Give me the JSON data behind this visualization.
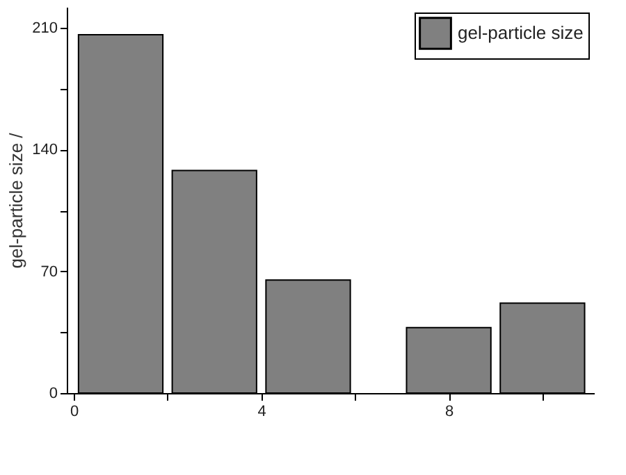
{
  "chart_data": {
    "type": "bar",
    "ylabel": "gel-particle size /",
    "x": [
      1,
      3,
      5,
      8,
      10
    ],
    "series": [
      {
        "name": "gel-particle size",
        "color": "#808080",
        "values": [
          206,
          128,
          65,
          37.6,
          51.7
        ]
      }
    ],
    "xlim": [
      -0.15,
      11.1
    ],
    "xticks": [
      0,
      {
        "value": 2,
        "label": null
      },
      4,
      {
        "value": 6,
        "label": null
      },
      8,
      {
        "value": 10,
        "label": null
      }
    ],
    "ylim": [
      0,
      222
    ],
    "yticks": [
      0,
      {
        "value": 35,
        "label": null
      },
      70,
      {
        "value": 105,
        "label": null
      },
      140,
      {
        "value": 175,
        "label": null
      },
      210
    ],
    "grid": false,
    "legend": "top right"
  }
}
